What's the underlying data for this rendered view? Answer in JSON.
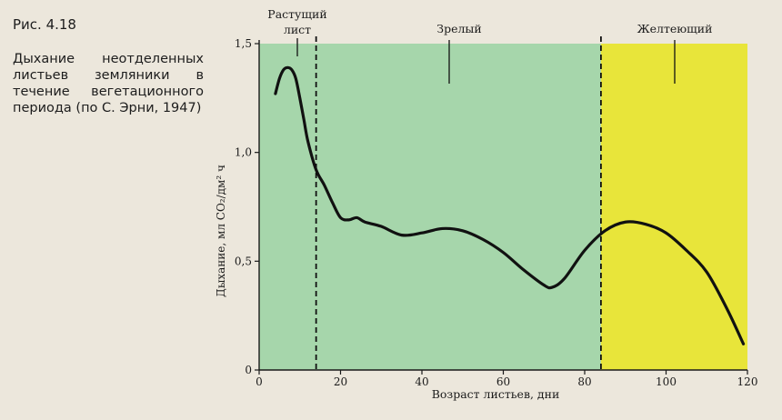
{
  "caption": {
    "figure_number": "Рис. 4.18",
    "text": "Дыхание неотделенных листьев земляники в течение вегетационного периода (по С. Эрни, 1947)"
  },
  "colors": {
    "page": "#ece7dc",
    "green_zone": "#a6d6ab",
    "yellow_zone": "#e8e53a",
    "curve": "#111111",
    "axis": "#1a1a1a"
  },
  "chart_data": {
    "type": "line",
    "title": "",
    "xlabel": "Возраст листьев, дни",
    "ylabel": "Дыхание, мл CO₂/дм² ч",
    "xlim": [
      0,
      120
    ],
    "ylim": [
      0,
      1.5
    ],
    "x_ticks": [
      0,
      20,
      40,
      60,
      80,
      100,
      120
    ],
    "x_tick_labels": [
      "0",
      "20",
      "40",
      "60",
      "80",
      "100",
      "120"
    ],
    "y_ticks": [
      0,
      0.5,
      1.0,
      1.5
    ],
    "y_tick_labels": [
      "0",
      "0,5",
      "1,0",
      "1,5"
    ],
    "grid": false,
    "phases": [
      {
        "label": "Растущий лист",
        "start": 0,
        "end": 14,
        "color": "green"
      },
      {
        "label": "Зрелый",
        "start": 14,
        "end": 84,
        "color": "green"
      },
      {
        "label": "Желтеющий",
        "start": 84,
        "end": 120,
        "color": "yellow"
      }
    ],
    "phase_boundaries": [
      14,
      84
    ],
    "series": [
      {
        "x": [
          4,
          5,
          6,
          7,
          8,
          9,
          10,
          11,
          12,
          14,
          16,
          18,
          20,
          22,
          24,
          26,
          30,
          35,
          40,
          45,
          50,
          55,
          60,
          65,
          70,
          72,
          75,
          80,
          85,
          90,
          95,
          100,
          105,
          110,
          115,
          119
        ],
        "y": [
          1.27,
          1.34,
          1.38,
          1.39,
          1.38,
          1.34,
          1.25,
          1.15,
          1.05,
          0.92,
          0.85,
          0.77,
          0.7,
          0.69,
          0.7,
          0.68,
          0.66,
          0.62,
          0.63,
          0.65,
          0.64,
          0.6,
          0.54,
          0.46,
          0.39,
          0.38,
          0.42,
          0.55,
          0.64,
          0.68,
          0.67,
          0.63,
          0.55,
          0.45,
          0.28,
          0.12
        ]
      }
    ]
  }
}
